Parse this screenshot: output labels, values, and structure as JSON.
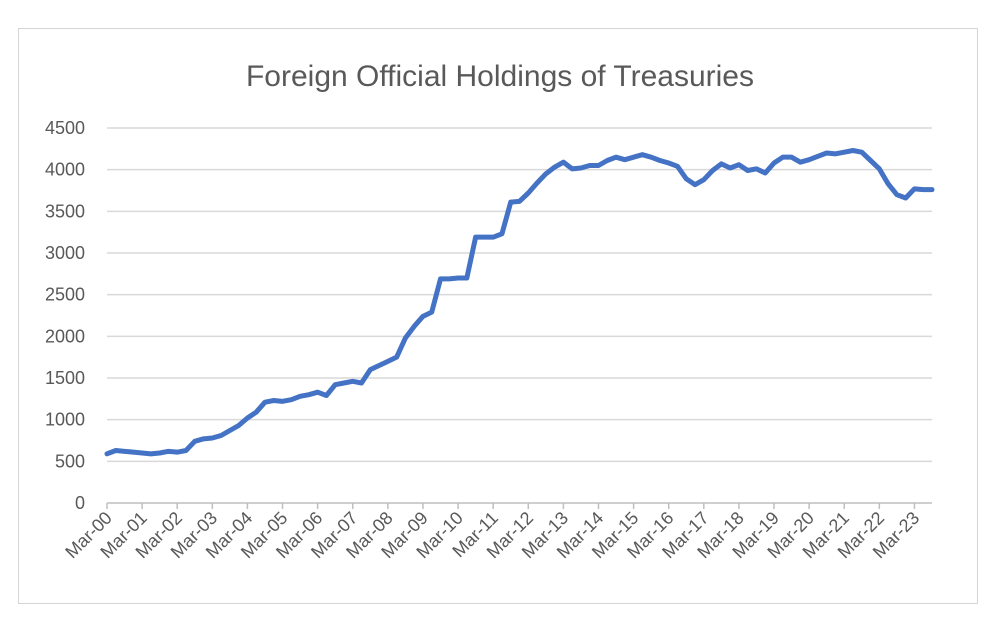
{
  "chart_data": {
    "type": "line",
    "title": "Foreign Official Holdings of Treasuries",
    "xlabel": "",
    "ylabel": "",
    "ylim": [
      0,
      4500
    ],
    "yticks": [
      0,
      500,
      1000,
      1500,
      2000,
      2500,
      3000,
      3500,
      4000,
      4500
    ],
    "xticks": [
      "Mar-00",
      "Mar-01",
      "Mar-02",
      "Mar-03",
      "Mar-04",
      "Mar-05",
      "Mar-06",
      "Mar-07",
      "Mar-08",
      "Mar-09",
      "Mar-10",
      "Mar-11",
      "Mar-12",
      "Mar-13",
      "Mar-14",
      "Mar-15",
      "Mar-16",
      "Mar-17",
      "Mar-18",
      "Mar-19",
      "Mar-20",
      "Mar-21",
      "Mar-22",
      "Mar-23"
    ],
    "grid": true,
    "legend": "none",
    "colors": {
      "series": "#4472C4",
      "grid": "#d9d9d9",
      "axis": "#bfbfbf",
      "text": "#595959"
    },
    "series": [
      {
        "x": [
          "Mar-00",
          "Jun-00",
          "Sep-00",
          "Dec-00",
          "Mar-01",
          "Jun-01",
          "Sep-01",
          "Dec-01",
          "Mar-02",
          "Jun-02",
          "Sep-02",
          "Dec-02",
          "Mar-03",
          "Jun-03",
          "Sep-03",
          "Dec-03",
          "Mar-04",
          "Jun-04",
          "Sep-04",
          "Dec-04",
          "Mar-05",
          "Jun-05",
          "Sep-05",
          "Dec-05",
          "Mar-06",
          "Jun-06",
          "Sep-06",
          "Dec-06",
          "Mar-07",
          "Jun-07",
          "Sep-07",
          "Dec-07",
          "Mar-08",
          "Jun-08",
          "Sep-08",
          "Dec-08",
          "Mar-09",
          "Jun-09",
          "Sep-09",
          "Dec-09",
          "Mar-10",
          "Jun-10",
          "Sep-10",
          "Dec-10",
          "Mar-11",
          "Jun-11",
          "Sep-11",
          "Dec-11",
          "Mar-12",
          "Jun-12",
          "Sep-12",
          "Dec-12",
          "Mar-13",
          "Jun-13",
          "Sep-13",
          "Dec-13",
          "Mar-14",
          "Jun-14",
          "Sep-14",
          "Dec-14",
          "Mar-15",
          "Jun-15",
          "Sep-15",
          "Dec-15",
          "Mar-16",
          "Jun-16",
          "Sep-16",
          "Dec-16",
          "Mar-17",
          "Jun-17",
          "Sep-17",
          "Dec-17",
          "Mar-18",
          "Jun-18",
          "Sep-18",
          "Dec-18",
          "Mar-19",
          "Jun-19",
          "Sep-19",
          "Dec-19",
          "Mar-20",
          "Jun-20",
          "Sep-20",
          "Dec-20",
          "Mar-21",
          "Jun-21",
          "Sep-21",
          "Dec-21",
          "Mar-22",
          "Jun-22",
          "Sep-22",
          "Dec-22",
          "Mar-23",
          "Jun-23",
          "Sep-23"
        ],
        "values": [
          590,
          630,
          620,
          610,
          600,
          590,
          600,
          620,
          610,
          630,
          740,
          770,
          780,
          810,
          870,
          930,
          1020,
          1090,
          1210,
          1230,
          1220,
          1240,
          1280,
          1300,
          1330,
          1290,
          1420,
          1440,
          1460,
          1440,
          1600,
          1650,
          1700,
          1750,
          1980,
          2120,
          2240,
          2290,
          2690,
          2690,
          2700,
          2700,
          3190,
          3190,
          3190,
          3230,
          3610,
          3620,
          3720,
          3840,
          3950,
          4030,
          4090,
          4010,
          4020,
          4050,
          4050,
          4110,
          4150,
          4120,
          4150,
          4180,
          4150,
          4110,
          4080,
          4040,
          3890,
          3820,
          3880,
          3990,
          4070,
          4020,
          4060,
          3990,
          4010,
          3960,
          4080,
          4150,
          4150,
          4090,
          4120,
          4160,
          4200,
          4190,
          4210,
          4230,
          4210,
          4110,
          4010,
          3830,
          3700,
          3660,
          3770,
          3760,
          3760
        ]
      }
    ]
  }
}
